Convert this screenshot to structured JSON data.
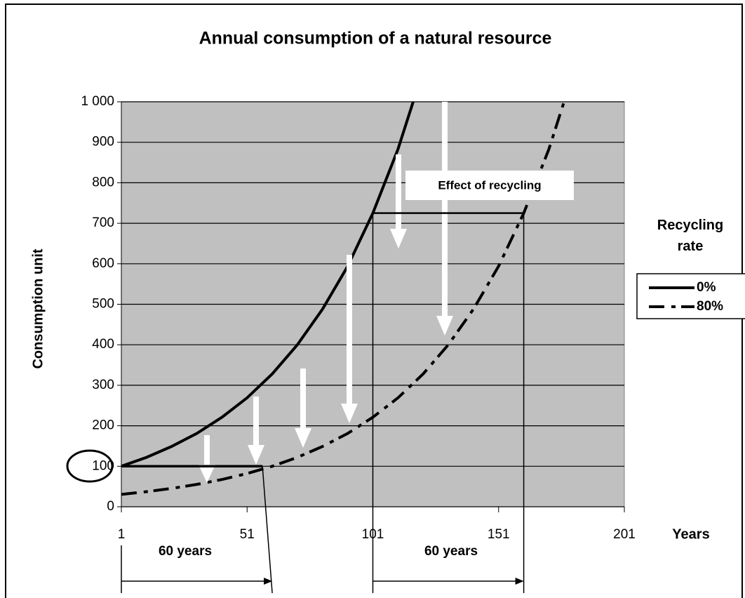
{
  "chart_data": {
    "type": "line",
    "title": "Annual consumption of a natural resource",
    "y_label": "Consumption unit",
    "x_label": "Years",
    "legend_title": "Recycling rate",
    "annotations": [
      "Effect of recycling",
      "60 years",
      "60 years"
    ],
    "x": [
      1,
      11,
      21,
      31,
      41,
      51,
      61,
      71,
      81,
      91,
      101,
      111,
      121,
      131,
      141,
      151,
      161,
      171,
      181
    ],
    "series": [
      {
        "name": "0%",
        "color": "#000000",
        "dash": "solid",
        "values": [
          100,
          122,
          149,
          181,
          221,
          269,
          328,
          400,
          488,
          594,
          725,
          883,
          1077,
          null,
          null,
          null,
          null,
          null,
          null
        ]
      },
      {
        "name": "80%",
        "color": "#000000",
        "dash": "dashed",
        "values": [
          30.5,
          37.2,
          45.3,
          55.2,
          67.3,
          82.1,
          100,
          122,
          149,
          181,
          221,
          269,
          328,
          400,
          488,
          594,
          725,
          883,
          1077
        ]
      }
    ],
    "xlim": [
      1,
      201
    ],
    "xticks": [
      1,
      51,
      101,
      151,
      201
    ],
    "ylim": [
      0,
      1000
    ],
    "yticks": [
      0,
      100,
      200,
      300,
      400,
      500,
      600,
      700,
      800,
      900,
      {
        "value": 1000,
        "label": "1 000"
      }
    ],
    "grid": true
  }
}
